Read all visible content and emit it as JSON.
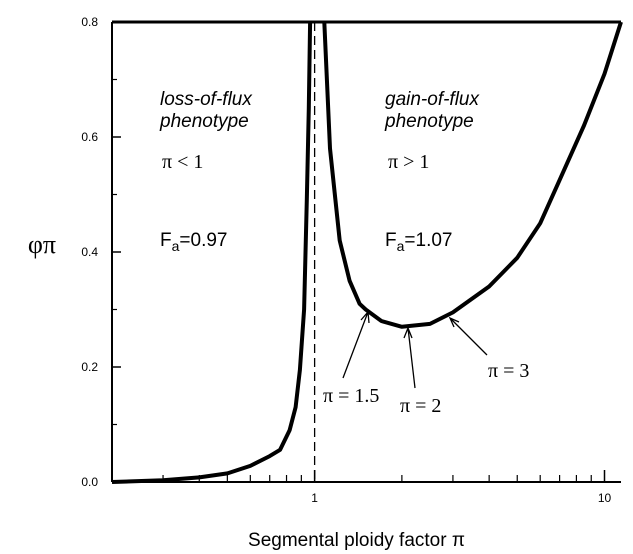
{
  "chart_data": {
    "type": "line",
    "xlabel": "Segmental ploidy factor π",
    "ylabel": "φπ",
    "log_x": true,
    "xlim": [
      0.2,
      11.4
    ],
    "ylim": [
      0,
      0.8
    ],
    "xticks": [
      1,
      10
    ],
    "xminor": [
      0.2,
      0.3,
      0.4,
      0.5,
      0.6,
      0.7,
      0.8,
      0.9,
      2,
      3,
      4,
      5,
      6,
      7,
      8,
      9
    ],
    "yticks": [
      {
        "value": 0,
        "label": "0.0"
      },
      0.2,
      0.4,
      0.6,
      0.8
    ],
    "yminor": [
      0.1,
      0.3,
      0.5,
      0.7
    ],
    "vline": 1,
    "x": [
      0.2,
      0.3,
      0.4,
      0.5,
      0.6,
      0.7,
      0.76,
      0.82,
      0.86,
      0.89,
      0.92,
      0.94,
      0.955,
      0.965,
      null,
      1.08,
      1.13,
      1.22,
      1.32,
      1.43,
      1.5,
      1.7,
      2,
      2.5,
      3,
      4,
      5,
      6,
      7,
      8.5,
      10,
      11.4
    ],
    "series": [
      {
        "name": "phi-pi",
        "color": "#000000",
        "values": [
          0.0,
          0.003,
          0.008,
          0.015,
          0.028,
          0.045,
          0.056,
          0.09,
          0.13,
          0.195,
          0.3,
          0.49,
          0.65,
          0.8,
          null,
          0.8,
          0.58,
          0.42,
          0.35,
          0.31,
          0.3,
          0.28,
          0.27,
          0.275,
          0.295,
          0.34,
          0.39,
          0.45,
          0.525,
          0.62,
          0.71,
          0.8
        ]
      }
    ],
    "annotations": [
      {
        "text": "loss-of-flux"
      },
      {
        "text": "phenotype"
      },
      {
        "text": "π < 1"
      },
      {
        "parts": [
          "F",
          "a",
          "=0.97"
        ]
      },
      {
        "text": "gain-of-flux"
      },
      {
        "text": "phenotype"
      },
      {
        "text": "π > 1"
      },
      {
        "parts": [
          "F",
          "a",
          "=1.07"
        ]
      },
      {
        "text": "π = 1.5"
      },
      {
        "text": "π = 2"
      },
      {
        "text": "π = 3"
      }
    ]
  }
}
